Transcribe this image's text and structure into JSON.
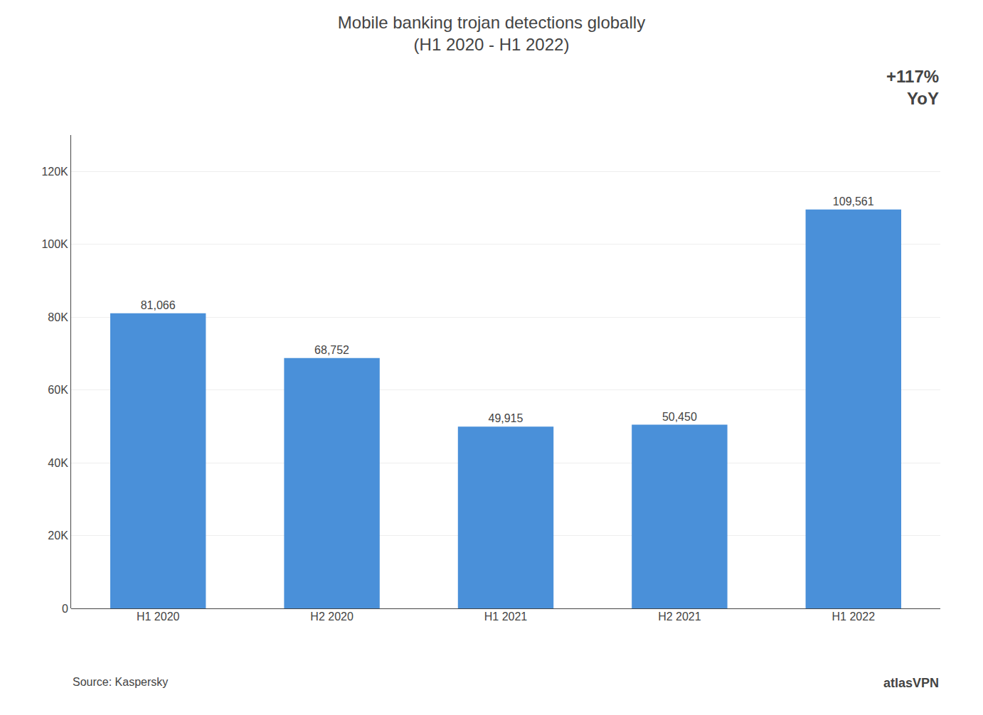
{
  "chart_data": {
    "type": "bar",
    "title": "Mobile banking trojan detections globally",
    "subtitle": "(H1 2020 - H1 2022)",
    "categories": [
      "H1 2020",
      "H2 2020",
      "H1 2021",
      "H2 2021",
      "H1 2022"
    ],
    "values": [
      81066,
      68752,
      49915,
      50450,
      109561
    ],
    "value_labels": [
      "81,066",
      "68,752",
      "49,915",
      "50,450",
      "109,561"
    ],
    "data_labels": true,
    "color": "#4a90d9",
    "ylim": [
      0,
      130000
    ],
    "yticks": [
      0,
      {
        "value": 20000,
        "label": "20K"
      },
      {
        "value": 40000,
        "label": "40K"
      },
      {
        "value": 60000,
        "label": "60K"
      },
      {
        "value": 80000,
        "label": "80K"
      },
      {
        "value": 100000,
        "label": "100K"
      },
      {
        "value": 120000,
        "label": "120K"
      }
    ],
    "grid": true,
    "annotations": [
      "+117%",
      "YoY",
      "Source: Kaspersky",
      "atlasVPN"
    ]
  }
}
